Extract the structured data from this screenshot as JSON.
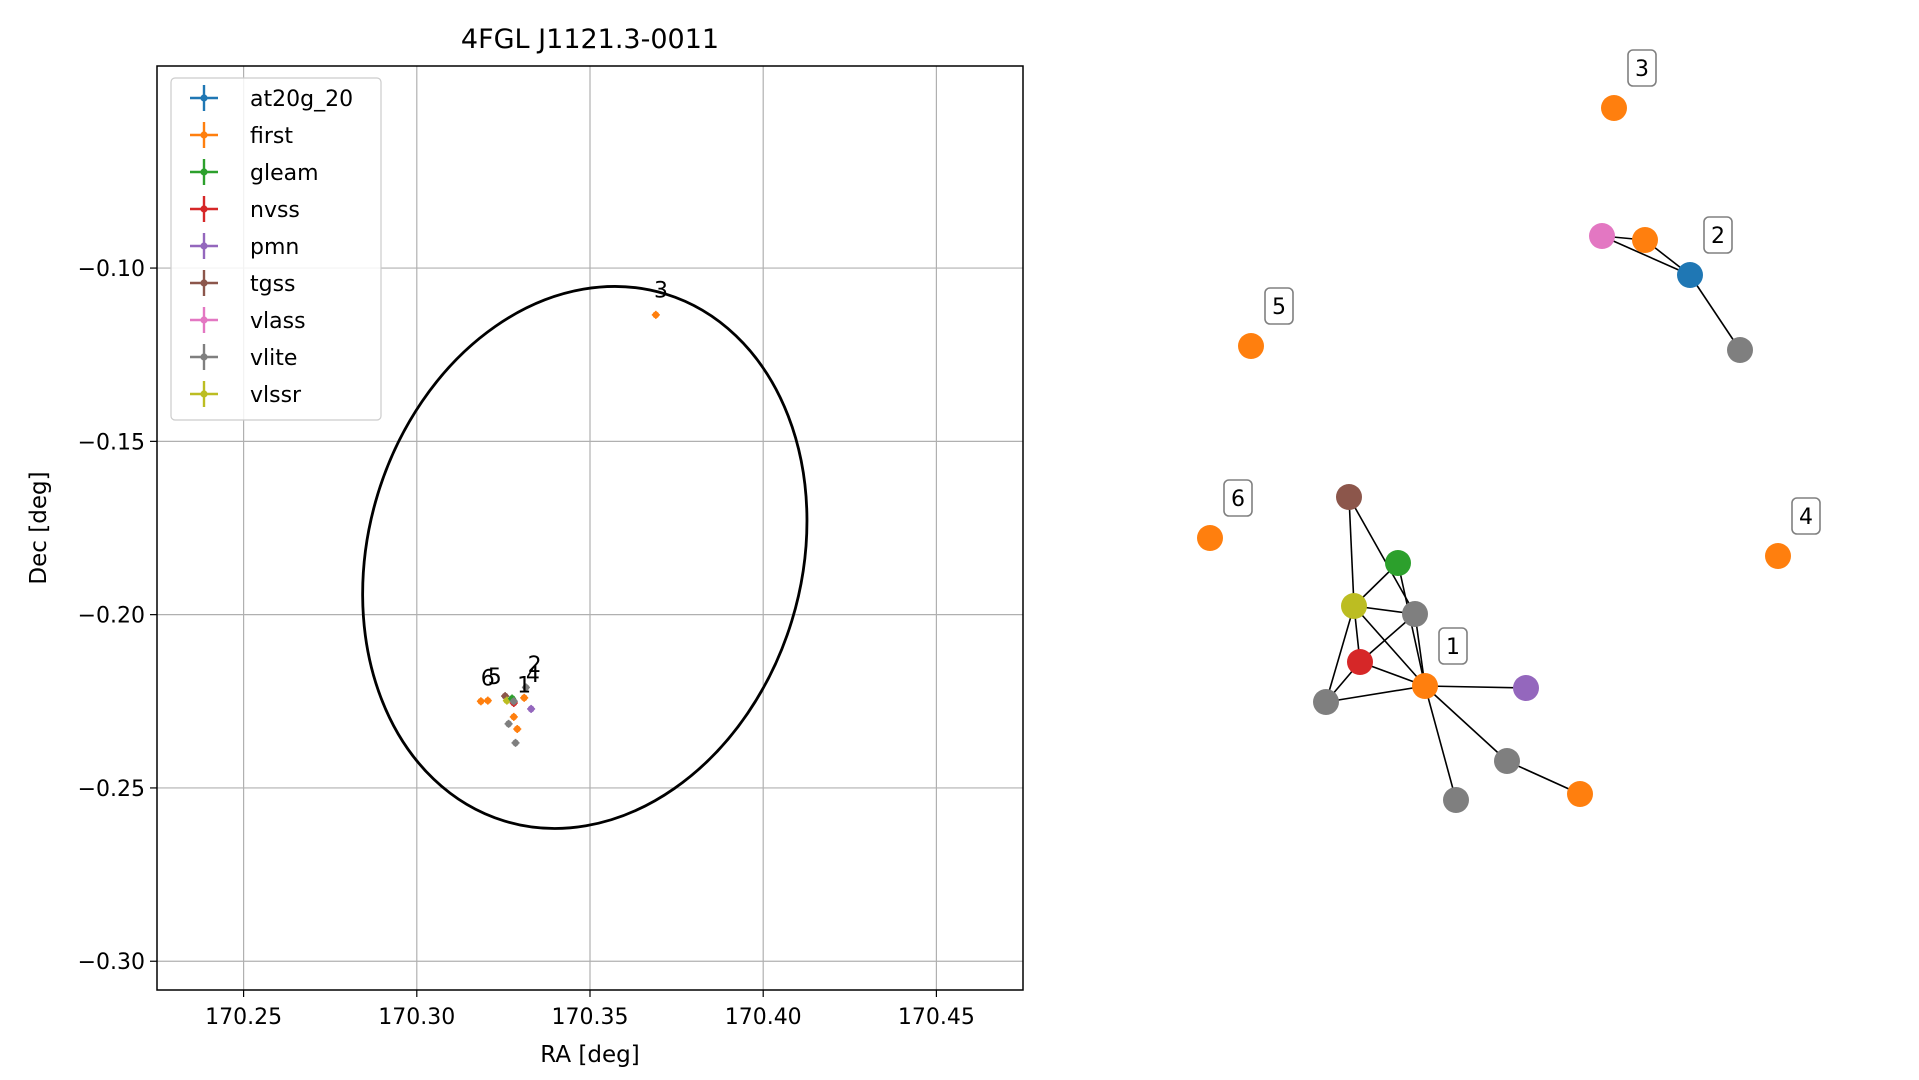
{
  "chart_data": [
    {
      "type": "scatter",
      "title": "4FGL J1121.3-0011",
      "xlabel": "RA [deg]",
      "ylabel": "Dec [deg]",
      "xlim": [
        170.225,
        170.475
      ],
      "ylim": [
        -0.3083,
        -0.0417
      ],
      "xticks": [
        "170.25",
        "170.30",
        "170.35",
        "170.40",
        "170.45"
      ],
      "yticks": [
        "−0.10",
        "−0.15",
        "−0.20",
        "−0.25",
        "−0.30"
      ],
      "grid": true,
      "legend_position": "upper-left",
      "legend": [
        {
          "label": "at20g_20",
          "color": "#1f77b4"
        },
        {
          "label": "first",
          "color": "#ff7f0e"
        },
        {
          "label": "gleam",
          "color": "#2ca02c"
        },
        {
          "label": "nvss",
          "color": "#d62728"
        },
        {
          "label": "pmn",
          "color": "#9467bd"
        },
        {
          "label": "tgss",
          "color": "#8c564b"
        },
        {
          "label": "vlass",
          "color": "#e377c2"
        },
        {
          "label": "vlite",
          "color": "#7f7f7f"
        },
        {
          "label": "vlssr",
          "color": "#bcbd22"
        }
      ],
      "ellipse": {
        "center": [
          170.3485,
          -0.1835
        ],
        "semi_axes_deg": [
          0.0625,
          0.0795
        ],
        "rotation_deg": 17
      },
      "points": [
        {
          "ra": 170.369,
          "dec": -0.1135,
          "color": "#ff7f0e"
        },
        {
          "ra": 170.3185,
          "dec": -0.225,
          "color": "#ff7f0e"
        },
        {
          "ra": 170.3205,
          "dec": -0.2248,
          "color": "#ff7f0e"
        },
        {
          "ra": 170.328,
          "dec": -0.2295,
          "color": "#ff7f0e"
        },
        {
          "ra": 170.329,
          "dec": -0.233,
          "color": "#ff7f0e"
        },
        {
          "ra": 170.331,
          "dec": -0.224,
          "color": "#ff7f0e"
        },
        {
          "ra": 170.3255,
          "dec": -0.2235,
          "color": "#8c564b"
        },
        {
          "ra": 170.326,
          "dec": -0.2248,
          "color": "#bcbd22"
        },
        {
          "ra": 170.3275,
          "dec": -0.2242,
          "color": "#2ca02c"
        },
        {
          "ra": 170.328,
          "dec": -0.2255,
          "color": "#d62728"
        },
        {
          "ra": 170.333,
          "dec": -0.2272,
          "color": "#9467bd"
        },
        {
          "ra": 170.3315,
          "dec": -0.221,
          "color": "#7f7f7f"
        },
        {
          "ra": 170.3265,
          "dec": -0.2315,
          "color": "#7f7f7f"
        },
        {
          "ra": 170.3285,
          "dec": -0.237,
          "color": "#7f7f7f"
        },
        {
          "ra": 170.328,
          "dec": -0.225,
          "color": "#7f7f7f"
        }
      ],
      "labels": [
        {
          "text": "3",
          "ra": 170.3705,
          "dec": -0.1085
        },
        {
          "text": "2",
          "ra": 170.334,
          "dec": -0.2165
        },
        {
          "text": "4",
          "ra": 170.3335,
          "dec": -0.2195
        },
        {
          "text": "1",
          "ra": 170.331,
          "dec": -0.2225
        },
        {
          "text": "6",
          "ra": 170.3205,
          "dec": -0.2205
        },
        {
          "text": "5",
          "ra": 170.3225,
          "dec": -0.22
        }
      ]
    },
    {
      "type": "network",
      "nodes": [
        {
          "id": "n3",
          "color": "#ff7f0e",
          "label": "3"
        },
        {
          "id": "vlass",
          "color": "#e377c2"
        },
        {
          "id": "f_b",
          "color": "#ff7f0e"
        },
        {
          "id": "n2",
          "color": "#1f77b4",
          "label": "2"
        },
        {
          "id": "v_a",
          "color": "#7f7f7f"
        },
        {
          "id": "n5",
          "color": "#ff7f0e",
          "label": "5"
        },
        {
          "id": "n6",
          "color": "#ff7f0e",
          "label": "6"
        },
        {
          "id": "n4",
          "color": "#ff7f0e",
          "label": "4"
        },
        {
          "id": "tgss",
          "color": "#8c564b"
        },
        {
          "id": "gleam",
          "color": "#2ca02c"
        },
        {
          "id": "vlssr",
          "color": "#bcbd22"
        },
        {
          "id": "v_b",
          "color": "#7f7f7f"
        },
        {
          "id": "n1",
          "color": "#ff7f0e",
          "label": "1"
        },
        {
          "id": "nvss",
          "color": "#d62728"
        },
        {
          "id": "pmn",
          "color": "#9467bd"
        },
        {
          "id": "v_c",
          "color": "#7f7f7f"
        },
        {
          "id": "v_d",
          "color": "#7f7f7f"
        },
        {
          "id": "f_c",
          "color": "#ff7f0e"
        },
        {
          "id": "v_e",
          "color": "#7f7f7f"
        }
      ],
      "edges": [
        [
          "vlass",
          "f_b"
        ],
        [
          "f_b",
          "n2"
        ],
        [
          "vlass",
          "n2"
        ],
        [
          "n2",
          "v_a"
        ],
        [
          "tgss",
          "vlssr"
        ],
        [
          "tgss",
          "v_b"
        ],
        [
          "gleam",
          "vlssr"
        ],
        [
          "gleam",
          "n1"
        ],
        [
          "vlssr",
          "nvss"
        ],
        [
          "vlssr",
          "v_c"
        ],
        [
          "vlssr",
          "v_b"
        ],
        [
          "vlssr",
          "n1"
        ],
        [
          "v_b",
          "nvss"
        ],
        [
          "v_b",
          "n1"
        ],
        [
          "nvss",
          "n1"
        ],
        [
          "nvss",
          "v_c"
        ],
        [
          "v_c",
          "n1"
        ],
        [
          "n1",
          "pmn"
        ],
        [
          "n1",
          "v_d"
        ],
        [
          "n1",
          "v_e"
        ],
        [
          "v_d",
          "f_c"
        ]
      ]
    }
  ]
}
